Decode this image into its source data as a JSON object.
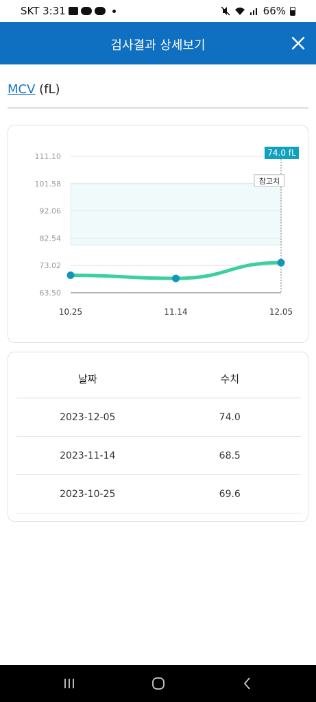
{
  "status_bar": {
    "carrier_time": "SKT 3:31",
    "battery_pct": "66%",
    "left_icons": [
      "gallery-icon",
      "talk-icon",
      "game-icon",
      "dot-icon"
    ],
    "right_icons": [
      "mute-icon",
      "wifi-icon",
      "signal-icon",
      "battery-icon"
    ]
  },
  "header": {
    "title": "검사결과 상세보기",
    "close_icon": "close-icon"
  },
  "section": {
    "name": "MCV",
    "unit": "(fL)"
  },
  "colors": {
    "header_bg": "#0f6fc0",
    "link": "#1476c6",
    "line": "#3ccfa0",
    "point": "#1196b8",
    "badge": "#12a0bf",
    "ref_band": "#f1fafb"
  },
  "chart_data": {
    "type": "line",
    "categories": [
      "10.25",
      "11.14",
      "12.05"
    ],
    "series": [
      {
        "values": [
          69.6,
          68.5,
          74.0
        ]
      }
    ],
    "ylim": [
      63.5,
      111.1
    ],
    "yticks": [
      "111.10",
      "101.58",
      "92.06",
      "82.54",
      "73.02",
      "63.50"
    ],
    "reference_range": [
      80.0,
      101.58
    ],
    "reference_label": "참고치",
    "value_badge": "74.0 fL",
    "grid": true
  },
  "table": {
    "headers": [
      "날짜",
      "수치"
    ],
    "rows": [
      {
        "date": "2023-12-05",
        "value": "74.0"
      },
      {
        "date": "2023-11-14",
        "value": "68.5"
      },
      {
        "date": "2023-10-25",
        "value": "69.6"
      }
    ]
  },
  "nav": {
    "icons": [
      "recent-apps-icon",
      "home-icon",
      "back-icon"
    ]
  }
}
